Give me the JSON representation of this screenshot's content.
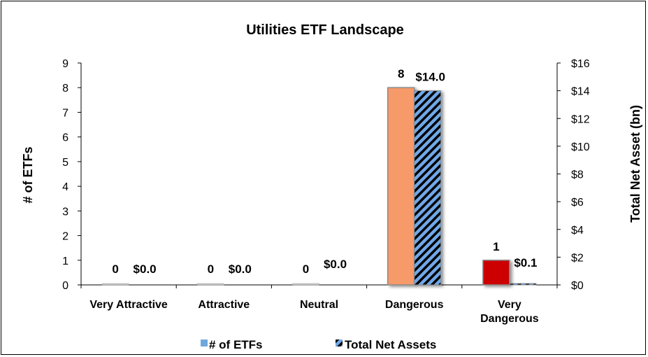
{
  "chart_data": {
    "type": "bar",
    "title": "Utilities ETF Landscape",
    "categories": [
      "Very Attractive",
      "Attractive",
      "Neutral",
      "Dangerous",
      "Very Dangerous"
    ],
    "series": [
      {
        "name": "# of ETFs",
        "axis": "left",
        "values": [
          0,
          0,
          0,
          8,
          1
        ],
        "labels": [
          "0",
          "0",
          "0",
          "8",
          "1"
        ],
        "colors": [
          "#f4a06f",
          "#f4a06f",
          "#f4a06f",
          "#f79a69",
          "#cc0000"
        ],
        "legend_color": "#6fa8dc"
      },
      {
        "name": "Total Net Assets",
        "axis": "right",
        "values": [
          0.0,
          0.0,
          0.0,
          14.0,
          0.1
        ],
        "labels": [
          "$0.0",
          "$0.0",
          "$0.0",
          "$14.0",
          "$0.1"
        ],
        "fill": "#6fa8e8",
        "hatch": "#000000"
      }
    ],
    "y_left": {
      "label": "# of ETFs",
      "ticks": [
        "0",
        "1",
        "2",
        "3",
        "4",
        "5",
        "6",
        "7",
        "8",
        "9"
      ],
      "range": [
        0,
        9
      ]
    },
    "y_right": {
      "label": "Total Net Asset (bn)",
      "ticks": [
        "$0",
        "$2",
        "$4",
        "$6",
        "$8",
        "$10",
        "$12",
        "$14",
        "$16"
      ],
      "range": [
        0,
        16
      ]
    },
    "legend_position": "bottom",
    "grid": false
  }
}
